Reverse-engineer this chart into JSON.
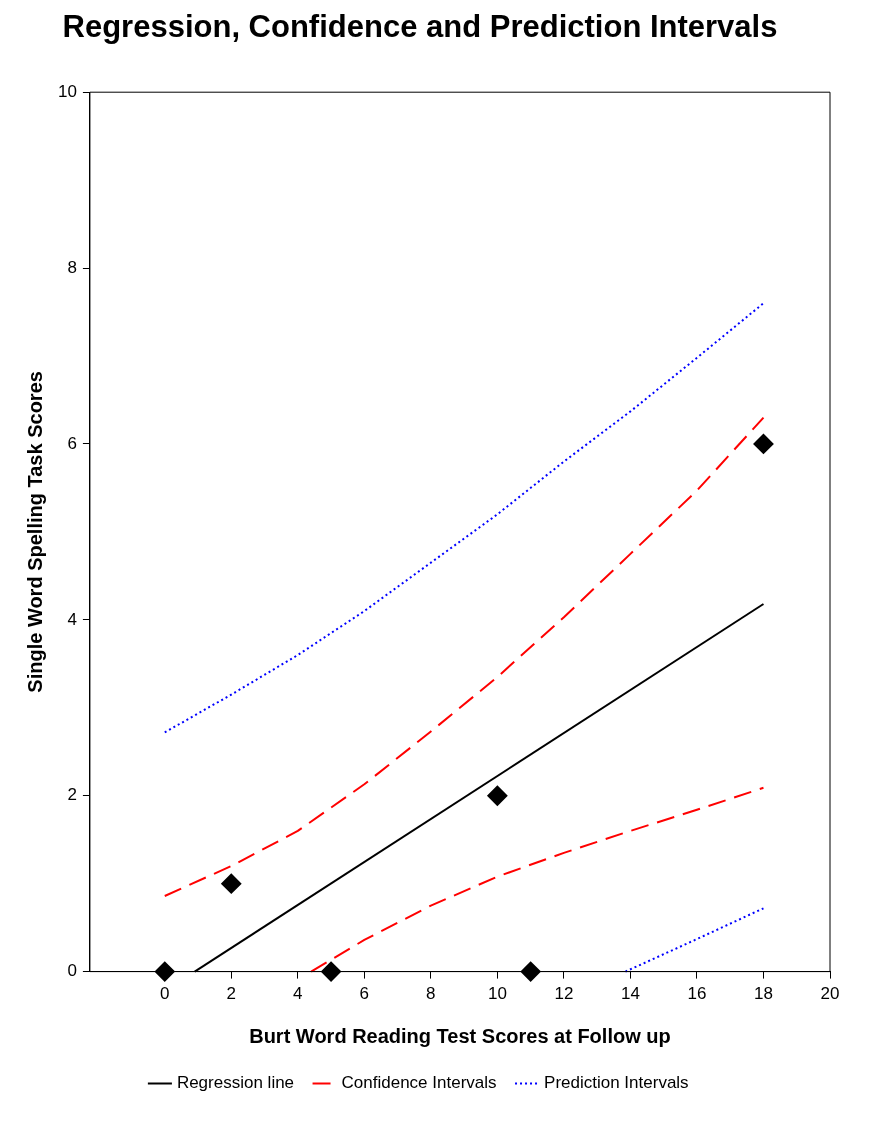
{
  "chart_data": {
    "type": "scatter",
    "title": "Regression, Confidence and Prediction Intervals",
    "xlabel": "Burt Word Reading Test Scores at Follow up",
    "ylabel": "Single Word Spelling Task Scores",
    "xlim": [
      -2.25,
      20
    ],
    "xticks": [
      0,
      2,
      4,
      6,
      8,
      10,
      12,
      14,
      16,
      18,
      20
    ],
    "ylim": [
      0,
      10
    ],
    "yticks": [
      0,
      2,
      4,
      6,
      8,
      10
    ],
    "grid": false,
    "legend": "bottom",
    "series": [
      {
        "type": "scatter",
        "color": "#000000",
        "marker": "diamond",
        "x": [
          0,
          2,
          5,
          10,
          11,
          18
        ],
        "values": [
          0,
          1,
          0,
          2,
          0,
          6
        ]
      },
      {
        "type": "line",
        "name": "Regression line",
        "color": "#000000",
        "line_style": "solid",
        "marker": "none",
        "x": [
          0.9,
          18
        ],
        "values": [
          0,
          4.18
        ]
      },
      {
        "type": "line",
        "name": "Confidence Intervals",
        "color": "#ff0000",
        "line_style": "dashed",
        "marker": "none",
        "x": [
          0,
          2,
          4,
          6,
          8,
          10,
          12,
          14,
          16,
          18
        ],
        "values": [
          0.86,
          1.2,
          1.6,
          2.13,
          2.73,
          3.35,
          4.03,
          4.75,
          5.47,
          6.3
        ]
      },
      {
        "type": "line",
        "color": "#ff0000",
        "line_style": "dashed",
        "marker": "none",
        "x": [
          4.4,
          6,
          8,
          10,
          12,
          14,
          16,
          18
        ],
        "values": [
          0,
          0.36,
          0.75,
          1.08,
          1.35,
          1.6,
          1.84,
          2.09
        ]
      },
      {
        "type": "line",
        "name": "Prediction Intervals",
        "color": "#0000ff",
        "line_style": "dotted",
        "marker": "none",
        "x": [
          0,
          2,
          4,
          6,
          8,
          10,
          12,
          14,
          16,
          18
        ],
        "values": [
          2.72,
          3.15,
          3.6,
          4.1,
          4.65,
          5.2,
          5.8,
          6.37,
          6.98,
          7.6
        ]
      },
      {
        "type": "line",
        "color": "#0000ff",
        "line_style": "dotted",
        "marker": "none",
        "x": [
          13.85,
          16,
          18
        ],
        "values": [
          0,
          0.37,
          0.72
        ]
      }
    ]
  }
}
